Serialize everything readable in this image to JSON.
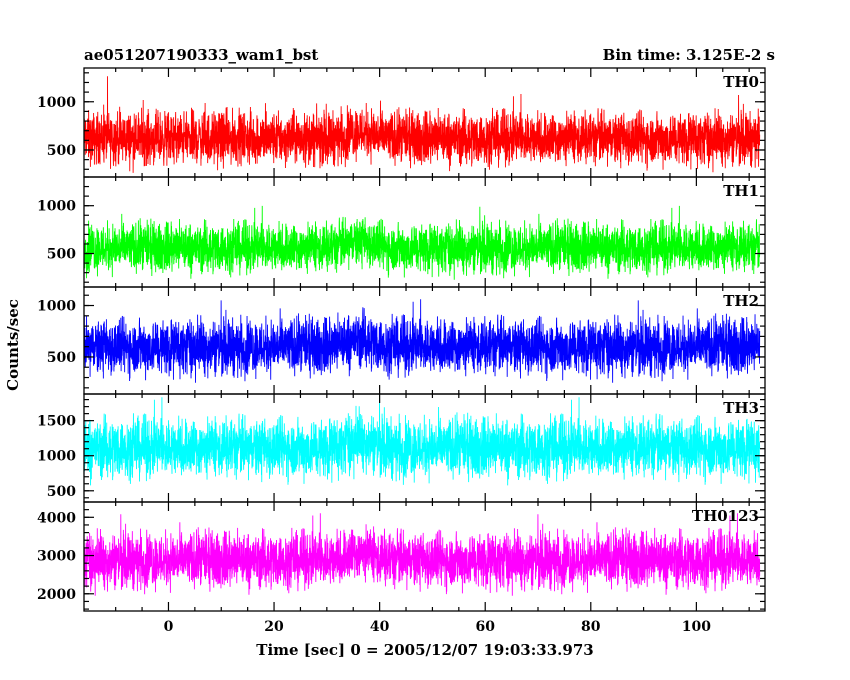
{
  "chart_data": {
    "type": "line",
    "title": "ae051207190333_wam1_bst",
    "subtitle": "Bin time: 3.125E-2 s",
    "xlabel": "Time [sec] 0 = 2005/12/07 19:03:33.973",
    "ylabel": "Counts/sec",
    "xlim": [
      -16,
      113
    ],
    "x_range": [
      -16,
      112
    ],
    "xticks": [
      0,
      20,
      40,
      60,
      80,
      100
    ],
    "grid": false,
    "legend": "none",
    "panels": [
      {
        "name": "TH0",
        "color": "#ff0000",
        "ylim": [
          220,
          1350
        ],
        "yticks": [
          500,
          1000
        ],
        "mean": 620,
        "spread": 210,
        "max_label": 1350
      },
      {
        "name": "TH1",
        "color": "#00ff00",
        "ylim": [
          150,
          1300
        ],
        "yticks": [
          500,
          1000
        ],
        "mean": 560,
        "spread": 200,
        "max_label": 1300
      },
      {
        "name": "TH2",
        "color": "#0000ff",
        "ylim": [
          140,
          1180
        ],
        "yticks": [
          500,
          1000
        ],
        "mean": 600,
        "spread": 210,
        "max_label": 1180
      },
      {
        "name": "TH3",
        "color": "#00ffff",
        "ylim": [
          340,
          1880
        ],
        "yticks": [
          500,
          1000,
          1500
        ],
        "mean": 1110,
        "spread": 330,
        "max_label": 1880
      },
      {
        "name": "TH0123",
        "color": "#ff00ff",
        "ylim": [
          1550,
          4400
        ],
        "yticks": [
          2000,
          3000,
          4000
        ],
        "mean": 2880,
        "spread": 560,
        "max_label": 4400
      }
    ]
  }
}
